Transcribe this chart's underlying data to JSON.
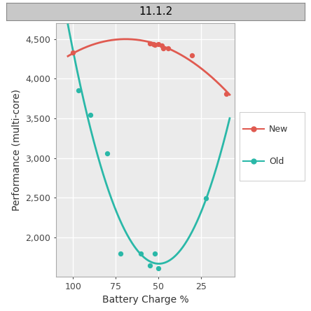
{
  "title": "11.1.2",
  "xlabel": "Battery Charge %",
  "ylabel": "Performance (multi-core)",
  "title_bg": "#c8c8c8",
  "plot_bg": "#ebebeb",
  "grid_color": "#ffffff",
  "outer_bg": "#f0f0f0",
  "new_color": "#e05a50",
  "old_color": "#2ab8a8",
  "new_points_x": [
    100,
    55,
    53,
    52,
    50,
    48,
    47,
    44,
    30,
    10
  ],
  "new_points_y": [
    4330,
    4450,
    4440,
    4430,
    4440,
    4420,
    4380,
    4380,
    4300,
    3810
  ],
  "old_points_x": [
    97,
    90,
    80,
    72,
    60,
    55,
    52,
    50,
    22
  ],
  "old_points_y": [
    3850,
    3540,
    3060,
    1790,
    1790,
    1640,
    1790,
    1610,
    2490
  ],
  "xlim": [
    110,
    5
  ],
  "ylim": [
    1500,
    4700
  ],
  "yticks": [
    2000,
    2500,
    3000,
    3500,
    4000,
    4500
  ],
  "xticks": [
    100,
    75,
    50,
    25
  ],
  "legend_new": "New",
  "legend_old": "Old"
}
